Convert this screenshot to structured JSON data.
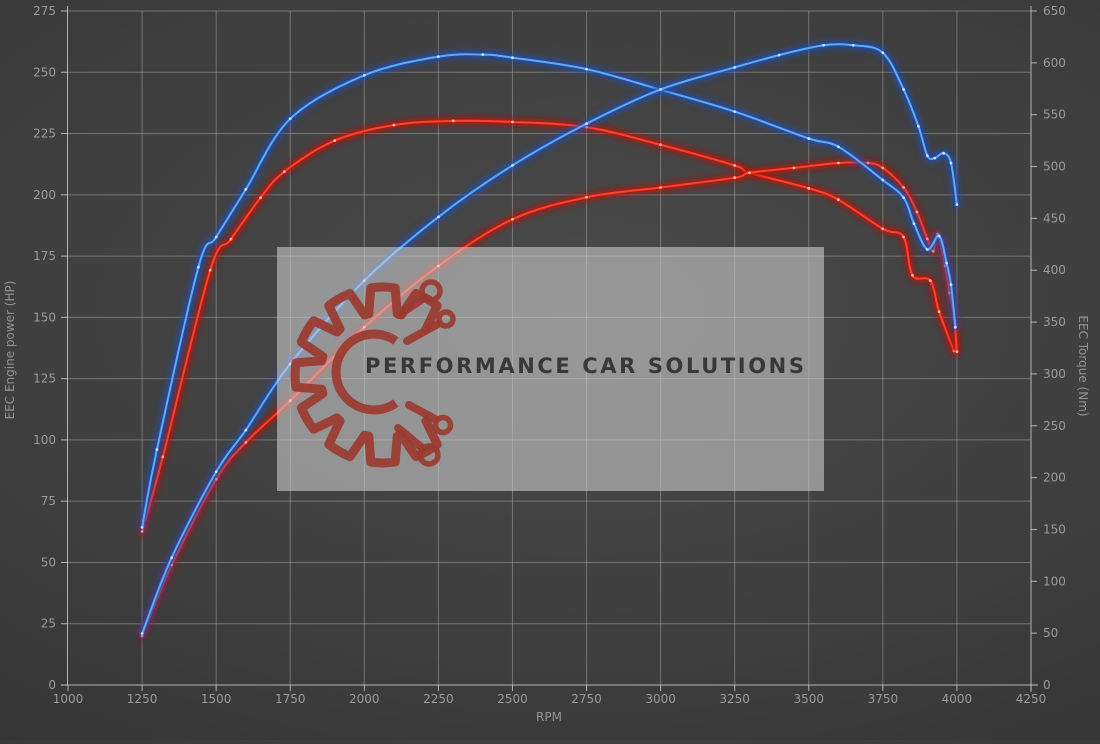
{
  "watermark": {
    "text": "PERFORMANCE CAR SOLUTIONS"
  },
  "colors": {
    "background": "#3d3d3d",
    "grid": "#ababab",
    "axis_line": "#c8c8c8",
    "axis_text": "#9b9b9b",
    "blue_glow": "#1a4fc0",
    "blue_core": "#61aaf0",
    "blue_dot": "#d6ecff",
    "red_glow": "#c01208",
    "red_core": "#ff4032",
    "red_dot": "#ffc8c0",
    "watermark_box": "#cecece",
    "watermark_text": "#383838",
    "logo_red": "#9a3a30"
  },
  "chart_data": {
    "type": "line",
    "title": "",
    "legend": "none",
    "grid": true,
    "xlabel": "RPM",
    "ylabel_left": "EEC Engine power (HP)",
    "ylabel_right": "EEC Torque (Nm)",
    "xlim": [
      1000,
      4250
    ],
    "ylim_left": [
      0,
      275
    ],
    "ylim_right": [
      0,
      650
    ],
    "x_ticks": [
      1000,
      1250,
      1500,
      1750,
      2000,
      2250,
      2500,
      2750,
      3000,
      3250,
      3500,
      3750,
      4000,
      4250
    ],
    "y_left_ticks": [
      0,
      25,
      50,
      75,
      100,
      125,
      150,
      175,
      200,
      225,
      250,
      275
    ],
    "y_right_ticks": [
      0,
      50,
      100,
      150,
      200,
      250,
      300,
      350,
      400,
      450,
      500,
      550,
      600,
      650
    ],
    "series": [
      {
        "name": "engine-torque-red",
        "label": "EEC Torque (red run)",
        "axis": "right",
        "color": "red",
        "units": "Nm",
        "points": [
          [
            1250,
            148
          ],
          [
            1320,
            220
          ],
          [
            1480,
            400
          ],
          [
            1550,
            430
          ],
          [
            1650,
            470
          ],
          [
            1730,
            495
          ],
          [
            1900,
            525
          ],
          [
            2100,
            540
          ],
          [
            2300,
            544
          ],
          [
            2500,
            543
          ],
          [
            2750,
            538
          ],
          [
            3000,
            521
          ],
          [
            3250,
            501
          ],
          [
            3300,
            494
          ],
          [
            3500,
            479
          ],
          [
            3600,
            468
          ],
          [
            3750,
            440
          ],
          [
            3820,
            432
          ],
          [
            3850,
            395
          ],
          [
            3910,
            390
          ],
          [
            3940,
            360
          ],
          [
            3990,
            322
          ]
        ]
      },
      {
        "name": "engine-power-red",
        "label": "EEC Engine power (red run)",
        "axis": "left",
        "color": "red",
        "units": "HP",
        "points": [
          [
            1250,
            20
          ],
          [
            1350,
            49
          ],
          [
            1500,
            84
          ],
          [
            1600,
            99
          ],
          [
            1750,
            116
          ],
          [
            2000,
            146
          ],
          [
            2250,
            171
          ],
          [
            2500,
            190
          ],
          [
            2750,
            199
          ],
          [
            3000,
            203
          ],
          [
            3250,
            207
          ],
          [
            3300,
            209
          ],
          [
            3450,
            211
          ],
          [
            3600,
            213
          ],
          [
            3700,
            213
          ],
          [
            3750,
            211
          ],
          [
            3820,
            203
          ],
          [
            3865,
            193
          ],
          [
            3900,
            182
          ],
          [
            3920,
            177
          ],
          [
            3935,
            184
          ],
          [
            3960,
            171
          ],
          [
            3975,
            160
          ],
          [
            3990,
            150
          ],
          [
            4000,
            136
          ]
        ]
      },
      {
        "name": "engine-torque-blue",
        "label": "EEC Torque (blue run)",
        "axis": "right",
        "color": "blue",
        "units": "Nm",
        "points": [
          [
            1250,
            152
          ],
          [
            1300,
            227
          ],
          [
            1440,
            403
          ],
          [
            1500,
            432
          ],
          [
            1600,
            478
          ],
          [
            1750,
            546
          ],
          [
            2000,
            588
          ],
          [
            2250,
            606
          ],
          [
            2400,
            608
          ],
          [
            2500,
            605
          ],
          [
            2750,
            594
          ],
          [
            3000,
            574
          ],
          [
            3250,
            553
          ],
          [
            3500,
            527
          ],
          [
            3600,
            519
          ],
          [
            3750,
            487
          ],
          [
            3820,
            470
          ],
          [
            3855,
            445
          ],
          [
            3900,
            420
          ],
          [
            3940,
            433
          ],
          [
            3965,
            407
          ],
          [
            3980,
            386
          ],
          [
            3995,
            345
          ]
        ]
      },
      {
        "name": "engine-power-blue",
        "label": "EEC Engine power (blue run)",
        "axis": "left",
        "color": "blue",
        "units": "HP",
        "points": [
          [
            1250,
            21
          ],
          [
            1350,
            52
          ],
          [
            1500,
            87
          ],
          [
            1600,
            104
          ],
          [
            1750,
            131
          ],
          [
            2000,
            165
          ],
          [
            2250,
            191
          ],
          [
            2500,
            212
          ],
          [
            2750,
            229
          ],
          [
            3000,
            243
          ],
          [
            3250,
            252
          ],
          [
            3400,
            257
          ],
          [
            3550,
            261
          ],
          [
            3650,
            261
          ],
          [
            3750,
            258
          ],
          [
            3820,
            243
          ],
          [
            3870,
            228
          ],
          [
            3900,
            216
          ],
          [
            3925,
            215
          ],
          [
            3955,
            217
          ],
          [
            3980,
            213
          ],
          [
            4000,
            196
          ]
        ]
      }
    ]
  }
}
